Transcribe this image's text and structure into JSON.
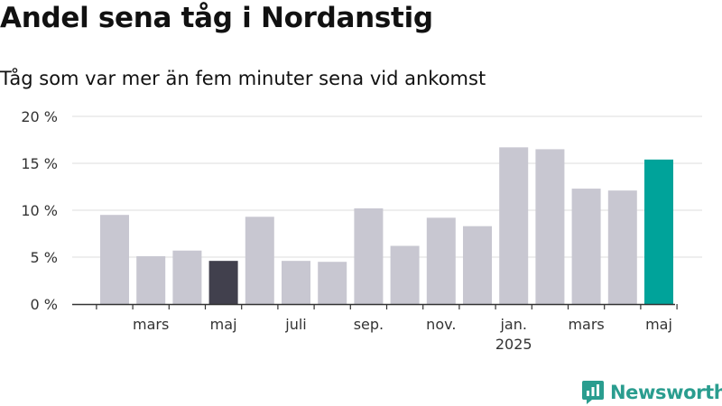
{
  "title": "Andel sena tåg i Nordanstig",
  "subtitle": "Tåg som var mer än fem minuter sena vid ankomst",
  "brand": {
    "name": "Newsworthy",
    "icon": "newsworthy-logo-icon",
    "color": "#2a9d8f"
  },
  "colors": {
    "bar": "#c8c7d1",
    "highlight_dark": "#41404d",
    "highlight_latest": "#00a39a",
    "grid": "#dddddd",
    "axis": "#333333"
  },
  "chart_data": {
    "type": "bar",
    "title": "Andel sena tåg i Nordanstig",
    "subtitle": "Tåg som var mer än fem minuter sena vid ankomst",
    "xlabel": "",
    "ylabel": "",
    "ylim": [
      0,
      20
    ],
    "y_ticks": [
      0,
      5,
      10,
      15,
      20
    ],
    "y_tick_labels": [
      "0 %",
      "5 %",
      "10 %",
      "15 %",
      "20 %"
    ],
    "grid": true,
    "x": [
      "2024-02",
      "2024-03",
      "2024-04",
      "2024-05",
      "2024-06",
      "2024-07",
      "2024-08",
      "2024-09",
      "2024-10",
      "2024-11",
      "2024-12",
      "2025-01",
      "2025-02",
      "2025-03",
      "2025-04",
      "2025-05"
    ],
    "values": [
      9.5,
      5.1,
      5.7,
      4.6,
      9.3,
      4.6,
      4.5,
      10.2,
      6.2,
      9.2,
      8.3,
      16.7,
      16.5,
      12.3,
      12.1,
      15.4
    ],
    "highlight": {
      "2024-05": "highlight_dark",
      "2025-05": "highlight_latest"
    },
    "x_tick_labels": [
      {
        "x": "2024-03",
        "label": "mars"
      },
      {
        "x": "2024-05",
        "label": "maj"
      },
      {
        "x": "2024-07",
        "label": "juli"
      },
      {
        "x": "2024-09",
        "label": "sep."
      },
      {
        "x": "2024-11",
        "label": "nov."
      },
      {
        "x": "2025-01",
        "label": "jan.",
        "sublabel": "2025"
      },
      {
        "x": "2025-03",
        "label": "mars"
      },
      {
        "x": "2025-05",
        "label": "maj"
      }
    ]
  }
}
